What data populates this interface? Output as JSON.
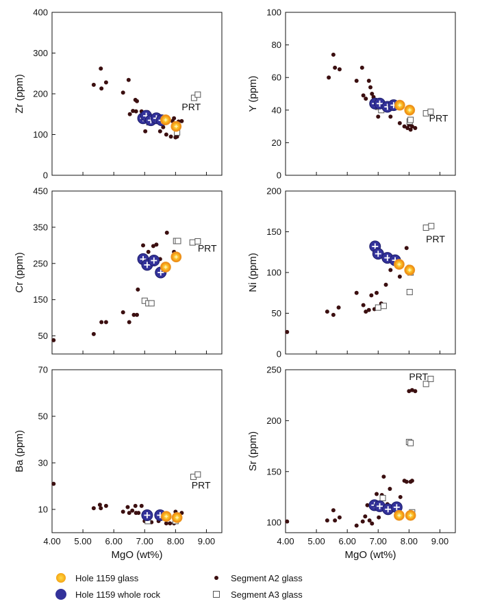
{
  "chart_data": [
    {
      "type": "scatter",
      "panel": "zr",
      "ylabel": "Zr (ppm)",
      "xlabel": "",
      "xlim": [
        4,
        9.5
      ],
      "ylim": [
        0,
        400
      ],
      "xticks": [
        "",
        "",
        "",
        "",
        "",
        ""
      ],
      "yticks": [
        "0",
        "100",
        "200",
        "300",
        "400"
      ],
      "ytick_values": [
        0,
        100,
        200,
        300,
        400
      ],
      "annotation": {
        "text": "PRT",
        "x": 8.2,
        "y": 160
      },
      "series": [
        {
          "key": "a2",
          "points": [
            [
              5.35,
              222
            ],
            [
              5.58,
              262
            ],
            [
              5.6,
              213
            ],
            [
              5.75,
              228
            ],
            [
              6.3,
              203
            ],
            [
              6.48,
              234
            ],
            [
              6.52,
              150
            ],
            [
              6.62,
              158
            ],
            [
              6.7,
              185
            ],
            [
              6.72,
              157
            ],
            [
              6.75,
              182
            ],
            [
              6.9,
              157
            ],
            [
              6.92,
              143
            ],
            [
              7.02,
              108
            ],
            [
              7.1,
              155
            ],
            [
              7.15,
              142
            ],
            [
              7.25,
              138
            ],
            [
              7.5,
              108
            ],
            [
              7.6,
              118
            ],
            [
              7.7,
              100
            ],
            [
              7.85,
              95
            ],
            [
              7.9,
              133
            ],
            [
              7.95,
              140
            ],
            [
              8.0,
              93
            ],
            [
              8.05,
              95
            ],
            [
              8.1,
              132
            ],
            [
              8.2,
              133
            ]
          ]
        },
        {
          "key": "a3",
          "points": [
            [
              7.15,
              130
            ],
            [
              8.02,
              120
            ],
            [
              8.05,
              105
            ],
            [
              8.6,
              190
            ],
            [
              8.72,
              198
            ]
          ]
        },
        {
          "key": "rock",
          "points": [
            [
              6.95,
              140
            ],
            [
              7.05,
              146
            ],
            [
              7.2,
              135
            ],
            [
              7.38,
              140
            ],
            [
              7.55,
              135
            ]
          ]
        },
        {
          "key": "glass",
          "points": [
            [
              7.68,
              136
            ],
            [
              8.02,
              120
            ]
          ]
        }
      ]
    },
    {
      "type": "scatter",
      "panel": "y",
      "ylabel": "Y (ppm)",
      "xlabel": "",
      "xlim": [
        4,
        9.5
      ],
      "ylim": [
        0,
        100
      ],
      "xticks": [
        "",
        "",
        "",
        "",
        "",
        ""
      ],
      "yticks": [
        "0",
        "20",
        "40",
        "60",
        "80",
        "100"
      ],
      "ytick_values": [
        0,
        20,
        40,
        60,
        80,
        100
      ],
      "annotation": {
        "text": "PRT",
        "x": 8.65,
        "y": 33
      },
      "series": [
        {
          "key": "a2",
          "points": [
            [
              5.4,
              60
            ],
            [
              5.55,
              74
            ],
            [
              5.6,
              66
            ],
            [
              5.75,
              65
            ],
            [
              6.3,
              58
            ],
            [
              6.48,
              66
            ],
            [
              6.52,
              49
            ],
            [
              6.6,
              47
            ],
            [
              6.7,
              58
            ],
            [
              6.75,
              54
            ],
            [
              6.8,
              50
            ],
            [
              6.85,
              48
            ],
            [
              6.92,
              46
            ],
            [
              7.0,
              36
            ],
            [
              7.1,
              43
            ],
            [
              7.2,
              41
            ],
            [
              7.3,
              40
            ],
            [
              7.4,
              36
            ],
            [
              7.5,
              41
            ],
            [
              7.7,
              32
            ],
            [
              7.85,
              30
            ],
            [
              7.95,
              29
            ],
            [
              8.0,
              31
            ],
            [
              8.1,
              30
            ],
            [
              8.2,
              29
            ],
            [
              8.05,
              28
            ]
          ]
        },
        {
          "key": "a3",
          "points": [
            [
              7.0,
              42
            ],
            [
              7.1,
              40
            ],
            [
              8.02,
              33
            ],
            [
              8.05,
              34
            ],
            [
              8.55,
              38
            ],
            [
              8.7,
              39
            ]
          ]
        },
        {
          "key": "rock",
          "points": [
            [
              6.9,
              44
            ],
            [
              7.05,
              44
            ],
            [
              7.3,
              42
            ],
            [
              7.5,
              43
            ]
          ]
        },
        {
          "key": "glass",
          "points": [
            [
              7.7,
              43
            ],
            [
              8.02,
              40
            ]
          ]
        }
      ]
    },
    {
      "type": "scatter",
      "panel": "cr",
      "ylabel": "Cr (ppm)",
      "xlabel": "",
      "xlim": [
        4,
        9.5
      ],
      "ylim": [
        0,
        450
      ],
      "xticks": [
        "",
        "",
        "",
        "",
        "",
        ""
      ],
      "yticks": [
        "50",
        "150",
        "250",
        "350",
        "450"
      ],
      "ytick_values": [
        50,
        150,
        250,
        350,
        450
      ],
      "annotation": {
        "text": "PRT",
        "x": 8.72,
        "y": 283
      },
      "series": [
        {
          "key": "a2",
          "points": [
            [
              4.05,
              38
            ],
            [
              5.35,
              55
            ],
            [
              5.6,
              88
            ],
            [
              5.75,
              88
            ],
            [
              6.3,
              115
            ],
            [
              6.5,
              88
            ],
            [
              6.65,
              108
            ],
            [
              6.75,
              108
            ],
            [
              6.78,
              178
            ],
            [
              6.95,
              300
            ],
            [
              7.12,
              282
            ],
            [
              7.28,
              298
            ],
            [
              7.38,
              302
            ],
            [
              7.5,
              262
            ],
            [
              7.72,
              335
            ],
            [
              7.95,
              282
            ]
          ]
        },
        {
          "key": "a3",
          "points": [
            [
              7.0,
              147
            ],
            [
              7.12,
              140
            ],
            [
              7.22,
              140
            ],
            [
              8.02,
              312
            ],
            [
              8.08,
              312
            ],
            [
              8.55,
              308
            ],
            [
              8.72,
              311
            ]
          ]
        },
        {
          "key": "rock",
          "points": [
            [
              6.95,
              262
            ],
            [
              7.08,
              246
            ],
            [
              7.3,
              258
            ],
            [
              7.52,
              225
            ]
          ]
        },
        {
          "key": "glass",
          "points": [
            [
              7.68,
              240
            ],
            [
              8.02,
              268
            ]
          ]
        }
      ]
    },
    {
      "type": "scatter",
      "panel": "ni",
      "ylabel": "Ni (ppm)",
      "xlabel": "",
      "xlim": [
        4,
        9.5
      ],
      "ylim": [
        0,
        200
      ],
      "xticks": [
        "",
        "",
        "",
        "",
        "",
        ""
      ],
      "yticks": [
        "0",
        "50",
        "100",
        "150",
        "200"
      ],
      "ytick_values": [
        0,
        50,
        100,
        150,
        200
      ],
      "annotation": {
        "text": "PRT",
        "x": 8.55,
        "y": 137
      },
      "series": [
        {
          "key": "a2",
          "points": [
            [
              4.05,
              27
            ],
            [
              5.35,
              52
            ],
            [
              5.55,
              48
            ],
            [
              5.72,
              57
            ],
            [
              6.3,
              75
            ],
            [
              6.52,
              60
            ],
            [
              6.6,
              52
            ],
            [
              6.7,
              54
            ],
            [
              6.78,
              72
            ],
            [
              6.88,
              55
            ],
            [
              6.95,
              75
            ],
            [
              7.1,
              62
            ],
            [
              7.25,
              85
            ],
            [
              7.4,
              103
            ],
            [
              7.7,
              95
            ],
            [
              7.92,
              130
            ],
            [
              7.98,
              107
            ]
          ]
        },
        {
          "key": "a3",
          "points": [
            [
              7.0,
              57
            ],
            [
              7.18,
              59
            ],
            [
              8.02,
              76
            ],
            [
              8.05,
              100
            ],
            [
              8.55,
              155
            ],
            [
              8.72,
              157
            ]
          ]
        },
        {
          "key": "rock",
          "points": [
            [
              6.9,
              132
            ],
            [
              7.0,
              123
            ],
            [
              7.3,
              118
            ],
            [
              7.55,
              115
            ]
          ]
        },
        {
          "key": "glass",
          "points": [
            [
              7.68,
              110
            ],
            [
              8.02,
              103
            ]
          ]
        }
      ]
    },
    {
      "type": "scatter",
      "panel": "ba",
      "ylabel": "Ba (ppm)",
      "xlabel": "MgO (wt%)",
      "xlim": [
        4,
        9.5
      ],
      "ylim": [
        0,
        70
      ],
      "xticks": [
        "4.00",
        "5.00",
        "6.00",
        "7.00",
        "8.00",
        "9.00"
      ],
      "yticks": [
        "10",
        "30",
        "50",
        "70"
      ],
      "ytick_values": [
        10,
        30,
        50,
        70
      ],
      "annotation": {
        "text": "PRT",
        "x": 8.52,
        "y": 19
      },
      "series": [
        {
          "key": "a2",
          "points": [
            [
              4.05,
              21
            ],
            [
              5.35,
              10.5
            ],
            [
              5.55,
              12
            ],
            [
              5.58,
              10.5
            ],
            [
              5.75,
              11.5
            ],
            [
              6.3,
              9
            ],
            [
              6.45,
              11
            ],
            [
              6.5,
              8.5
            ],
            [
              6.6,
              9.5
            ],
            [
              6.7,
              11.5
            ],
            [
              6.72,
              8.5
            ],
            [
              6.8,
              8.5
            ],
            [
              6.9,
              11.5
            ],
            [
              7.0,
              5
            ],
            [
              7.1,
              5
            ],
            [
              7.22,
              4.5
            ],
            [
              7.45,
              5
            ],
            [
              7.55,
              6
            ],
            [
              7.7,
              4
            ],
            [
              7.82,
              4
            ],
            [
              7.95,
              4
            ],
            [
              8.0,
              9
            ],
            [
              8.1,
              6
            ],
            [
              8.2,
              8.5
            ]
          ]
        },
        {
          "key": "a3",
          "points": [
            [
              7.1,
              5
            ],
            [
              8.0,
              5
            ],
            [
              8.58,
              24
            ],
            [
              8.72,
              25
            ]
          ]
        },
        {
          "key": "rock",
          "points": [
            [
              7.08,
              7.5
            ],
            [
              7.5,
              7.5
            ]
          ]
        },
        {
          "key": "glass",
          "points": [
            [
              7.7,
              7
            ],
            [
              8.05,
              6.5
            ]
          ]
        }
      ]
    },
    {
      "type": "scatter",
      "panel": "sr",
      "ylabel": "Sr (ppm)",
      "xlabel": "MgO (wt%)",
      "xlim": [
        4,
        9.5
      ],
      "ylim": [
        90,
        250
      ],
      "xticks": [
        "4.00",
        "5.00",
        "6.00",
        "7.00",
        "8.00",
        "9.00"
      ],
      "yticks": [
        "100",
        "150",
        "200",
        "250"
      ],
      "ytick_values": [
        100,
        150,
        200,
        250
      ],
      "annotation": {
        "text": "PRT",
        "x": 8.0,
        "y": 240
      },
      "series": [
        {
          "key": "a2",
          "points": [
            [
              4.05,
              101
            ],
            [
              5.35,
              102
            ],
            [
              5.55,
              112
            ],
            [
              5.6,
              102
            ],
            [
              5.75,
              105
            ],
            [
              6.3,
              97
            ],
            [
              6.5,
              101
            ],
            [
              6.58,
              106
            ],
            [
              6.65,
              117
            ],
            [
              6.72,
              102
            ],
            [
              6.8,
              99
            ],
            [
              6.85,
              119
            ],
            [
              6.95,
              128
            ],
            [
              7.02,
              105
            ],
            [
              7.12,
              127
            ],
            [
              7.18,
              145
            ],
            [
              7.3,
              118
            ],
            [
              7.38,
              133
            ],
            [
              7.62,
              115
            ],
            [
              7.72,
              125
            ],
            [
              7.85,
              141
            ],
            [
              7.92,
              140
            ],
            [
              8.0,
              229
            ],
            [
              8.05,
              140
            ],
            [
              8.1,
              230
            ],
            [
              8.2,
              229
            ],
            [
              8.1,
              141
            ]
          ]
        },
        {
          "key": "a3",
          "points": [
            [
              7.15,
              124
            ],
            [
              8.0,
              179
            ],
            [
              8.05,
              178
            ],
            [
              8.1,
              110
            ],
            [
              8.55,
              236
            ],
            [
              8.7,
              241
            ]
          ]
        },
        {
          "key": "rock",
          "points": [
            [
              6.88,
              117
            ],
            [
              7.05,
              116
            ],
            [
              7.32,
              113
            ],
            [
              7.6,
              115
            ]
          ]
        },
        {
          "key": "glass",
          "points": [
            [
              7.68,
              107
            ],
            [
              8.05,
              107
            ]
          ]
        }
      ]
    }
  ],
  "legend": {
    "glass": "Hole 1159 glass",
    "rock": "Hole 1159 whole rock",
    "a2": "Segment A2 glass",
    "a3": "Segment A3 glass"
  },
  "colors": {
    "glass_center": "#ffd84a",
    "glass_edge": "#ef7f13",
    "rock": "#33329a",
    "a2": "#3b0f10",
    "a3_stroke": "#555555",
    "axis": "#111111"
  }
}
